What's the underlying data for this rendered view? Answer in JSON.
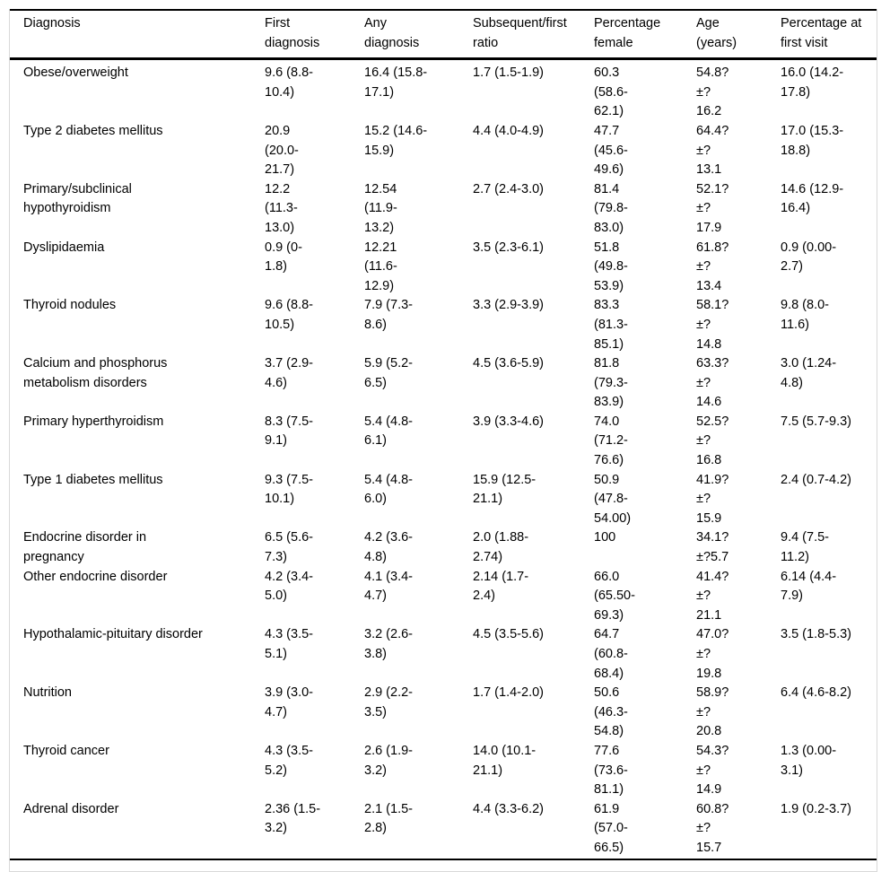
{
  "table": {
    "columns": [
      "Diagnosis",
      "First\ndiagnosis",
      "Any\ndiagnosis",
      "Subsequent/first\nratio",
      "Percentage\nfemale",
      "Age\n(years)",
      "Percentage at\nfirst visit"
    ],
    "rows": [
      [
        "Obese/overweight",
        "9.6 (8.8-\n10.4)",
        "16.4 (15.8-\n17.1)",
        "1.7 (1.5-1.9)",
        "60.3\n(58.6-\n62.1)",
        "54.8?\n±?\n16.2",
        "16.0 (14.2-\n17.8)"
      ],
      [
        "Type 2 diabetes mellitus",
        "20.9\n(20.0-\n21.7)",
        "15.2 (14.6-\n15.9)",
        "4.4 (4.0-4.9)",
        "47.7\n(45.6-\n49.6)",
        "64.4?\n±?\n13.1",
        "17.0 (15.3-\n18.8)"
      ],
      [
        "Primary/subclinical\nhypothyroidism",
        "12.2\n(11.3-\n13.0)",
        "12.54\n(11.9-\n13.2)",
        "2.7 (2.4-3.0)",
        "81.4\n(79.8-\n83.0)",
        "52.1?\n±?\n17.9",
        "14.6 (12.9-\n16.4)"
      ],
      [
        "Dyslipidaemia",
        "0.9 (0-\n1.8)",
        "12.21\n(11.6-\n12.9)",
        "3.5 (2.3-6.1)",
        "51.8\n(49.8-\n53.9)",
        "61.8?\n±?\n13.4",
        "0.9 (0.00-\n2.7)"
      ],
      [
        "Thyroid nodules",
        "9.6 (8.8-\n10.5)",
        "7.9 (7.3-\n8.6)",
        "3.3 (2.9-3.9)",
        "83.3\n(81.3-\n85.1)",
        "58.1?\n±?\n14.8",
        "9.8 (8.0-\n11.6)"
      ],
      [
        "Calcium and phosphorus\nmetabolism disorders",
        "3.7 (2.9-\n4.6)",
        "5.9 (5.2-\n6.5)",
        "4.5 (3.6-5.9)",
        "81.8\n(79.3-\n83.9)",
        "63.3?\n±?\n14.6",
        "3.0 (1.24-\n4.8)"
      ],
      [
        "Primary hyperthyroidism",
        "8.3 (7.5-\n9.1)",
        "5.4 (4.8-\n6.1)",
        "3.9 (3.3-4.6)",
        "74.0\n(71.2-\n76.6)",
        "52.5?\n±?\n16.8",
        "7.5 (5.7-9.3)"
      ],
      [
        "Type 1 diabetes mellitus",
        "9.3 (7.5-\n10.1)",
        "5.4 (4.8-\n6.0)",
        "15.9 (12.5-\n21.1)",
        "50.9\n(47.8-\n54.00)",
        "41.9?\n±?\n15.9",
        "2.4 (0.7-4.2)"
      ],
      [
        "Endocrine disorder in\npregnancy",
        "6.5 (5.6-\n7.3)",
        "4.2 (3.6-\n4.8)",
        "2.0 (1.88-\n2.74)",
        "100",
        "34.1?\n±?5.7",
        "9.4 (7.5-\n11.2)"
      ],
      [
        "Other endocrine disorder",
        "4.2 (3.4-\n5.0)",
        "4.1 (3.4-\n4.7)",
        "2.14 (1.7-\n2.4)",
        "66.0\n(65.50-\n69.3)",
        "41.4?\n±?\n21.1",
        "6.14 (4.4-\n7.9)"
      ],
      [
        "Hypothalamic-pituitary disorder",
        "4.3 (3.5-\n5.1)",
        "3.2 (2.6-\n3.8)",
        "4.5 (3.5-5.6)",
        "64.7\n(60.8-\n68.4)",
        "47.0?\n±?\n19.8",
        "3.5 (1.8-5.3)"
      ],
      [
        "Nutrition",
        "3.9 (3.0-\n4.7)",
        "2.9 (2.2-\n3.5)",
        "1.7 (1.4-2.0)",
        "50.6\n(46.3-\n54.8)",
        "58.9?\n±?\n20.8",
        "6.4 (4.6-8.2)"
      ],
      [
        "Thyroid cancer",
        "4.3 (3.5-\n5.2)",
        "2.6 (1.9-\n3.2)",
        "14.0 (10.1-\n21.1)",
        "77.6\n(73.6-\n81.1)",
        "54.3?\n±?\n14.9",
        "1.3 (0.00-\n3.1)"
      ],
      [
        "Adrenal disorder",
        "2.36 (1.5-\n3.2)",
        "2.1 (1.5-\n2.8)",
        "4.4 (3.3-6.2)",
        "61.9\n(57.0-\n66.5)",
        "60.8?\n±?\n15.7",
        "1.9 (0.2-3.7)"
      ]
    ]
  },
  "colors": {
    "text": "#000000",
    "rule": "#000000",
    "frame": "#d9d9d9",
    "background": "#ffffff"
  }
}
